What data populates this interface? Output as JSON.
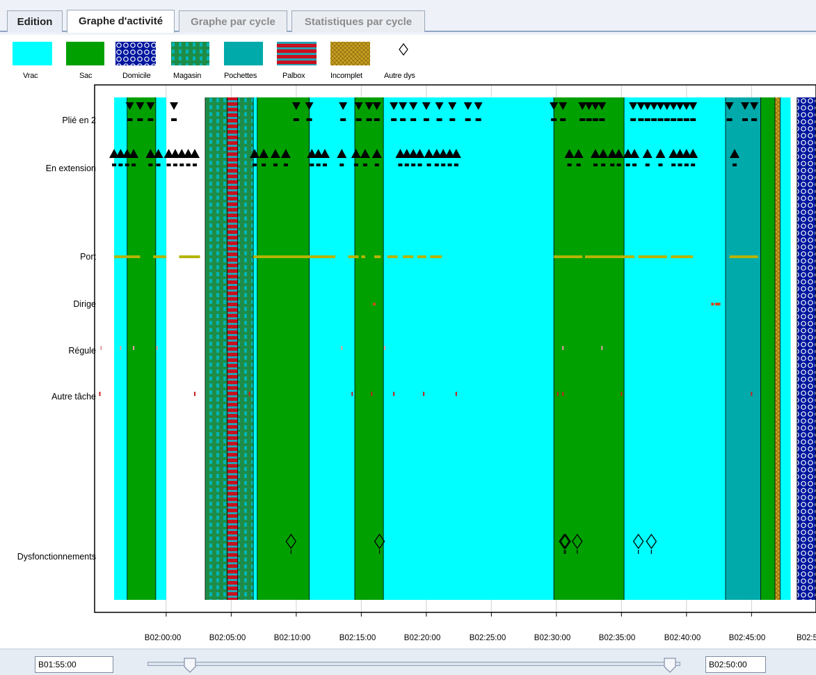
{
  "tabs": [
    {
      "label": "Edition",
      "state": "normal"
    },
    {
      "label": "Graphe d'activité",
      "state": "active"
    },
    {
      "label": "Graphe par cycle",
      "state": "disabled"
    },
    {
      "label": "Statistiques par cycle",
      "state": "disabled"
    }
  ],
  "legend": [
    {
      "label": "Vrac",
      "pattern": "solid",
      "color": "#00ffff"
    },
    {
      "label": "Sac",
      "pattern": "solid",
      "color": "#00a000"
    },
    {
      "label": "Domicile",
      "pattern": "circles",
      "color": "#00169e"
    },
    {
      "label": "Magasin",
      "pattern": "checker",
      "color": "#1e8c46"
    },
    {
      "label": "Pochettes",
      "pattern": "solid",
      "color": "#00aaaa"
    },
    {
      "label": "Palbox",
      "pattern": "stripes",
      "color": "#c8101e"
    },
    {
      "label": "Incomplet",
      "pattern": "crosshatch",
      "color": "#c8a020"
    },
    {
      "label": "Autre dys",
      "pattern": "diamond",
      "color": "#000000"
    }
  ],
  "rows": [
    "Plié en 2",
    "En extension",
    "Port",
    "Dirige",
    "Régule",
    "Autre tâche",
    "Dysfonctionnements"
  ],
  "axis": {
    "ticks": [
      "B02:00:00",
      "B02:05:00",
      "B02:10:00",
      "B02:15:00",
      "B02:20:00",
      "B02:25:00",
      "B02:30:00",
      "B02:35:00",
      "B02:40:00",
      "B02:45:00",
      "B02:5"
    ]
  },
  "range": {
    "start": "B01:55:00",
    "end": "B02:50:00",
    "slider_start_fraction": 0.08,
    "slider_end_fraction": 0.98
  },
  "colors": {
    "vrac": "#00ffff",
    "sac": "#00a000",
    "pochettes": "#00aaaa",
    "port": "#b4b400",
    "tick_mark": "#c8501e",
    "domicile": "#00169e",
    "palbox": "#c8101e",
    "incomplet": "#c8a020"
  },
  "segments": [
    {
      "cat": "vrac",
      "start": 116.0,
      "end": 117.0
    },
    {
      "cat": "sac",
      "start": 117.0,
      "end": 119.2
    },
    {
      "cat": "vrac",
      "start": 119.2,
      "end": 120.0
    },
    {
      "cat": "magasin",
      "start": 123.0,
      "end": 124.7
    },
    {
      "cat": "palbox",
      "start": 124.7,
      "end": 125.5
    },
    {
      "cat": "magasin",
      "start": 125.5,
      "end": 126.7
    },
    {
      "cat": "vrac",
      "start": 126.7,
      "end": 127.0
    },
    {
      "cat": "sac",
      "start": 127.0,
      "end": 131.0
    },
    {
      "cat": "vrac",
      "start": 131.0,
      "end": 134.5
    },
    {
      "cat": "sac",
      "start": 134.5,
      "end": 136.7
    },
    {
      "cat": "vrac",
      "start": 136.7,
      "end": 149.8
    },
    {
      "cat": "sac",
      "start": 149.8,
      "end": 155.2
    },
    {
      "cat": "vrac",
      "start": 155.2,
      "end": 163.0
    },
    {
      "cat": "pochettes",
      "start": 163.0,
      "end": 165.7
    },
    {
      "cat": "sac",
      "start": 165.7,
      "end": 166.8
    },
    {
      "cat": "incomplet",
      "start": 166.8,
      "end": 167.2
    },
    {
      "cat": "vrac",
      "start": 167.2,
      "end": 168.0
    },
    {
      "cat": "domicile",
      "start": 168.5,
      "end": 170.0
    }
  ],
  "events": {
    "plie_en_2_times": [
      117.2,
      118.0,
      118.8,
      120.6,
      130.0,
      131.0,
      133.6,
      134.8,
      135.6,
      136.2,
      137.5,
      138.2,
      139.0,
      140.0,
      141.0,
      142.0,
      143.2,
      144.0,
      149.8,
      150.5,
      152.0,
      152.5,
      153.0,
      153.5,
      155.9,
      156.5,
      157.0,
      157.5,
      158.0,
      158.5,
      159.0,
      159.5,
      160.0,
      160.5,
      163.3,
      164.5,
      165.2
    ],
    "en_extension_times": [
      116.0,
      116.5,
      117.0,
      117.5,
      118.8,
      119.4,
      120.2,
      120.7,
      121.2,
      121.7,
      122.2,
      126.8,
      127.5,
      128.4,
      129.2,
      131.2,
      131.7,
      132.2,
      133.5,
      134.6,
      135.3,
      136.2,
      138.0,
      138.5,
      139.0,
      139.5,
      140.2,
      140.8,
      141.3,
      141.8,
      142.3,
      151.0,
      151.7,
      153.0,
      153.6,
      154.3,
      154.8,
      155.5,
      156.0,
      157.0,
      158.0,
      159.0,
      159.5,
      160.0,
      160.5,
      163.7
    ],
    "port_intervals": [
      [
        116.0,
        118.0
      ],
      [
        119.0,
        120.0
      ],
      [
        121.0,
        122.6
      ],
      [
        126.7,
        133.0
      ],
      [
        134.0,
        134.8
      ],
      [
        135.0,
        135.3
      ],
      [
        136.0,
        136.5
      ],
      [
        137.0,
        137.8
      ],
      [
        138.2,
        139.0
      ],
      [
        139.3,
        140.0
      ],
      [
        140.3,
        141.2
      ],
      [
        149.8,
        152.0
      ],
      [
        152.2,
        156.0
      ],
      [
        156.3,
        158.5
      ],
      [
        158.8,
        160.5
      ],
      [
        163.3,
        165.5
      ]
    ],
    "dirige_times": [
      136.0,
      162.0,
      162.3,
      162.5
    ],
    "regule_times": [
      115.0,
      116.5,
      117.5,
      119.3,
      133.5,
      136.8,
      150.5,
      153.5
    ],
    "autre_tache_times": [
      114.9,
      122.2,
      126.4,
      134.3,
      135.8,
      137.5,
      139.8,
      142.3,
      150.1,
      150.5,
      155.0,
      165.0
    ],
    "dysfonctionnements_times": [
      129.6,
      136.4,
      150.6,
      150.7,
      151.6,
      156.3,
      157.3
    ]
  }
}
